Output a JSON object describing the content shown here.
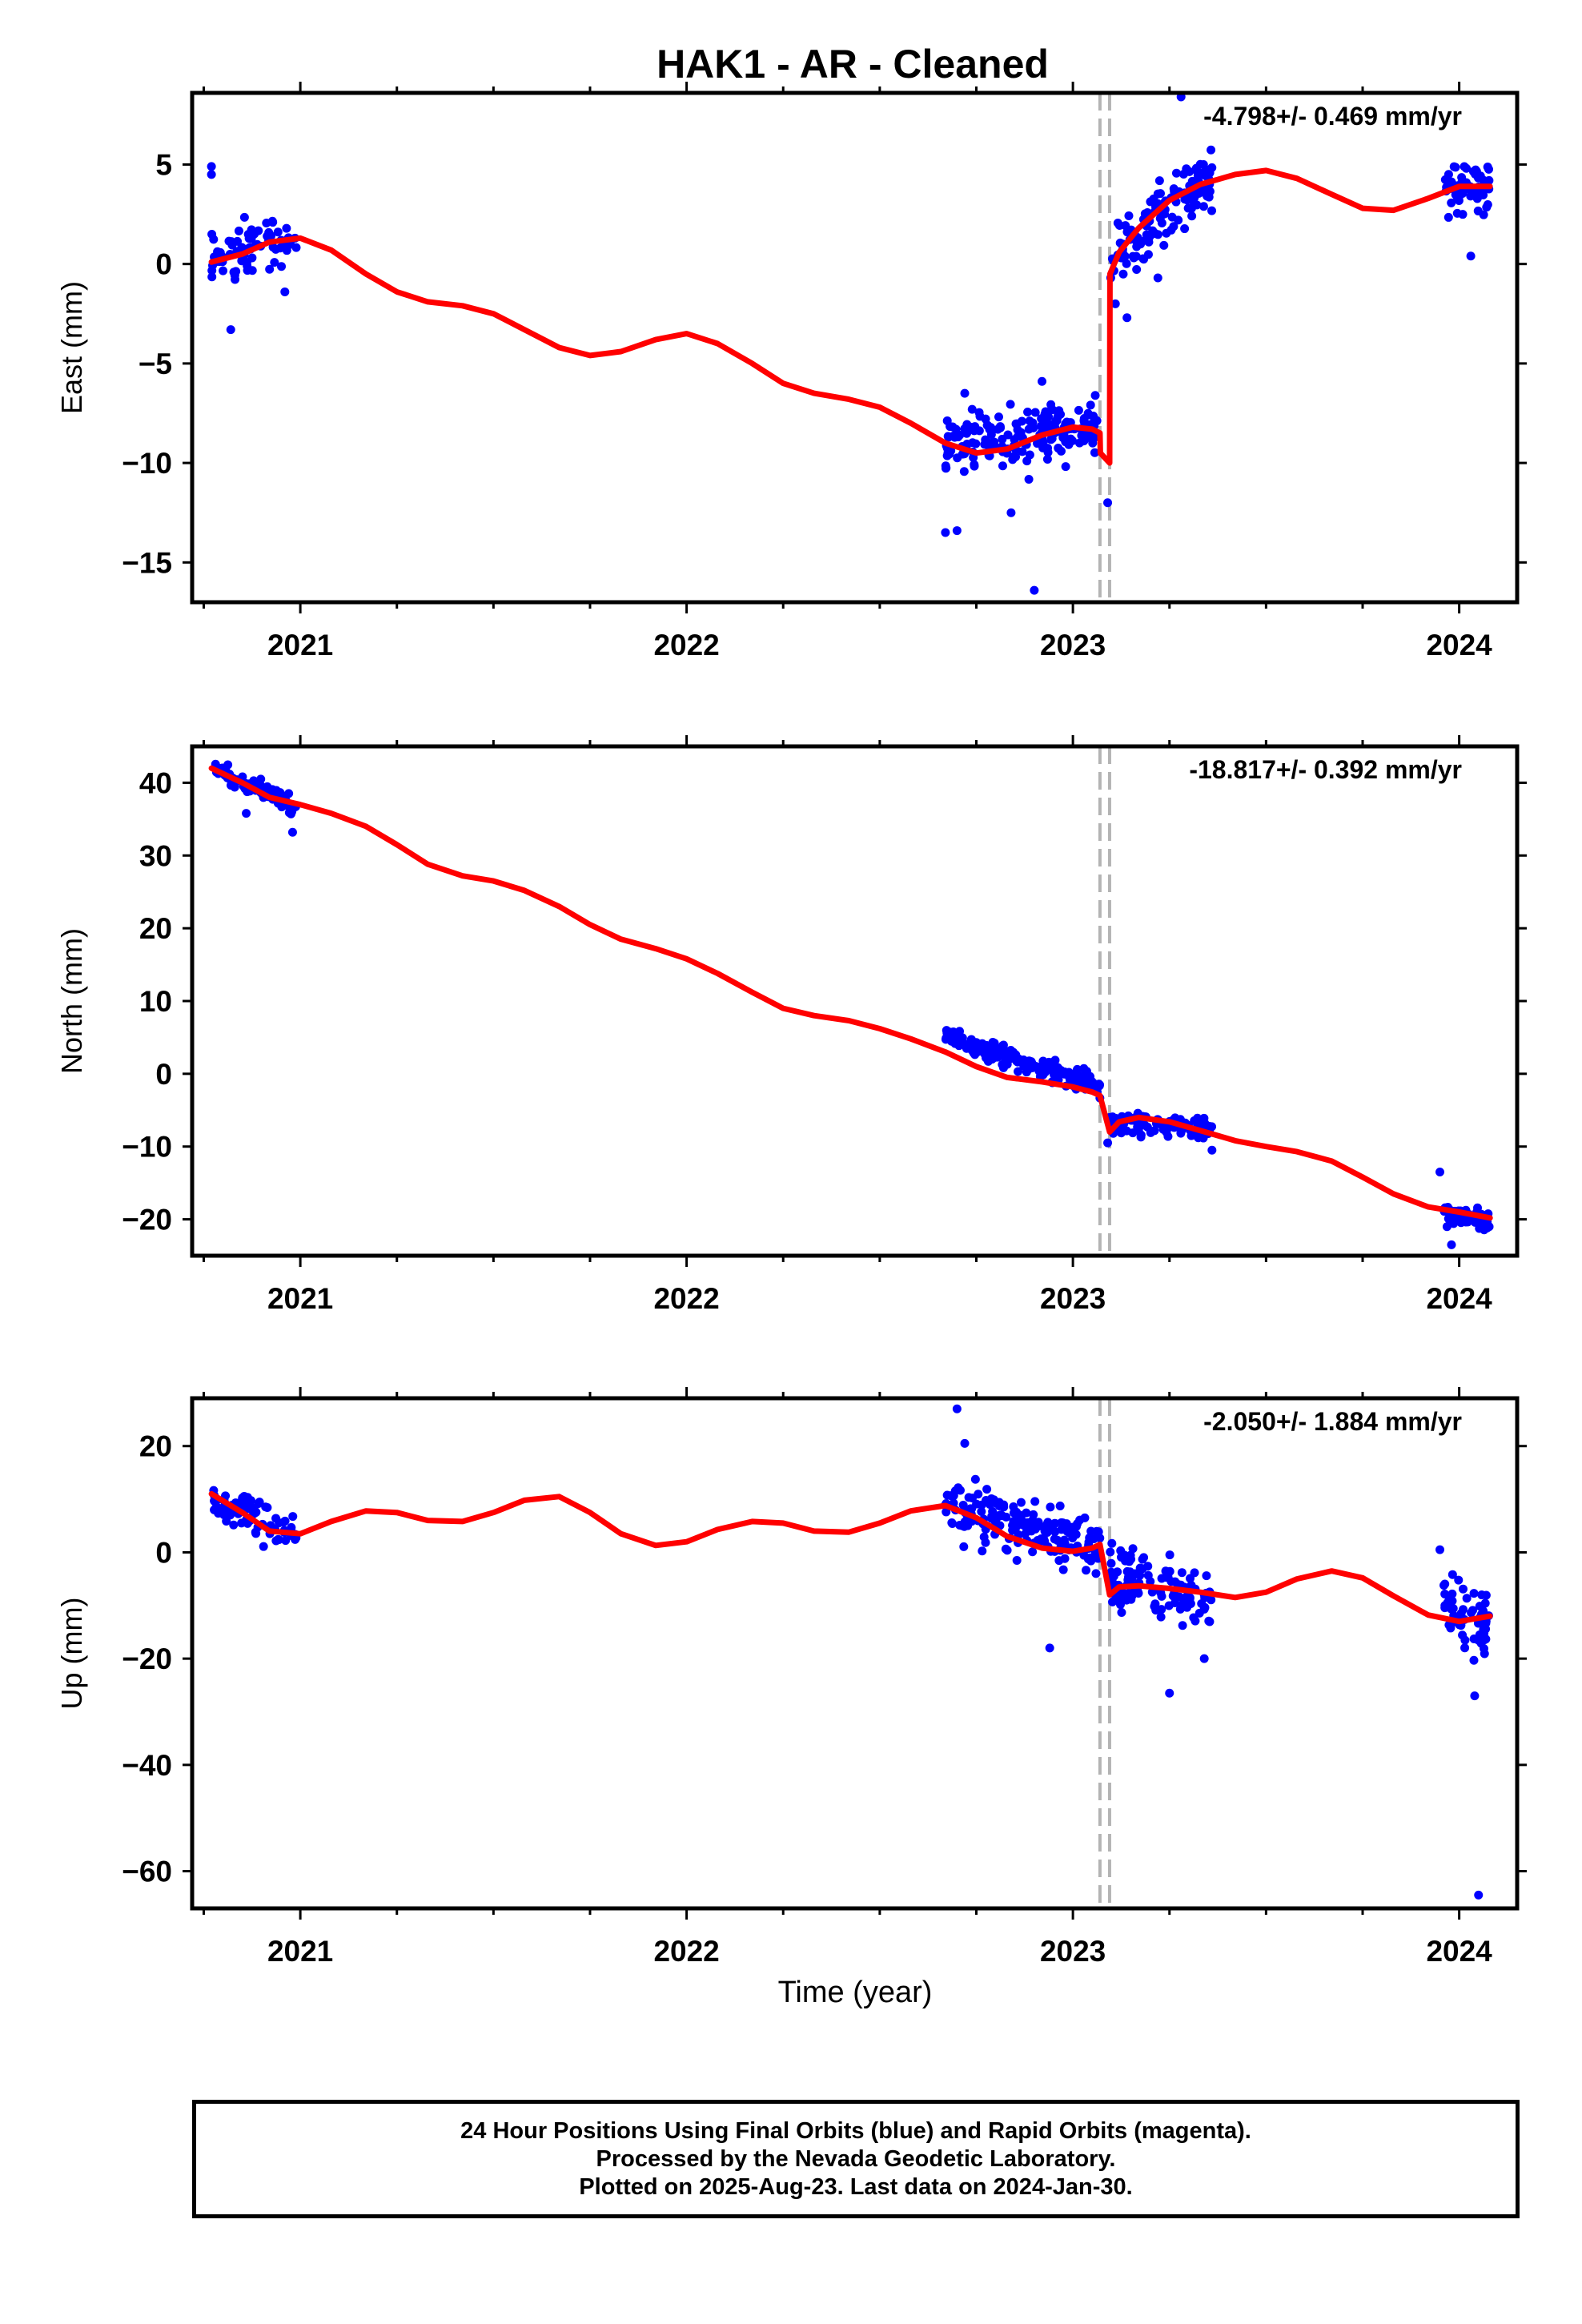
{
  "title": "HAK1  - AR - Cleaned",
  "xlabel": "Time (year)",
  "footer": {
    "line1": "24 Hour Positions Using Final Orbits (blue) and Rapid Orbits (magenta).",
    "line2": "Processed by the Nevada Geodetic Laboratory.",
    "line3": "Plotted on 2025-Aug-23. Last data on 2024-Jan-30."
  },
  "colors": {
    "points": "#0000ff",
    "model": "#ff0000",
    "steps": "#b4b4b4",
    "axes": "#000000"
  },
  "chart_data": [
    {
      "type": "scatter",
      "ylabel": "East (mm)",
      "rate_label": "-4.798+/- 0.469 mm/yr",
      "xlim": [
        2020.72,
        2024.15
      ],
      "ylim": [
        -17,
        8.6
      ],
      "x_ticks": [
        2021,
        2022,
        2023,
        2024
      ],
      "x_tick_labels": [
        "2021",
        "2022",
        "2023",
        "2024"
      ],
      "y_ticks": [
        -15,
        -10,
        -5,
        0,
        5
      ],
      "y_tick_labels": [
        "−15",
        "−10",
        "−5",
        "0",
        "5"
      ],
      "steps": [
        2023.07,
        2023.095
      ],
      "model": [
        [
          2020.77,
          0.1
        ],
        [
          2020.85,
          0.5
        ],
        [
          2020.92,
          1.1
        ],
        [
          2021.0,
          1.3
        ],
        [
          2021.08,
          0.7
        ],
        [
          2021.17,
          -0.5
        ],
        [
          2021.25,
          -1.4
        ],
        [
          2021.33,
          -1.9
        ],
        [
          2021.42,
          -2.1
        ],
        [
          2021.5,
          -2.5
        ],
        [
          2021.58,
          -3.3
        ],
        [
          2021.67,
          -4.2
        ],
        [
          2021.75,
          -4.6
        ],
        [
          2021.83,
          -4.4
        ],
        [
          2021.92,
          -3.8
        ],
        [
          2022.0,
          -3.5
        ],
        [
          2022.08,
          -4.0
        ],
        [
          2022.17,
          -5.0
        ],
        [
          2022.25,
          -6.0
        ],
        [
          2022.33,
          -6.5
        ],
        [
          2022.42,
          -6.8
        ],
        [
          2022.5,
          -7.2
        ],
        [
          2022.58,
          -8.0
        ],
        [
          2022.67,
          -9.0
        ],
        [
          2022.75,
          -9.5
        ],
        [
          2022.83,
          -9.3
        ],
        [
          2022.92,
          -8.6
        ],
        [
          2023.0,
          -8.2
        ],
        [
          2023.05,
          -8.3
        ],
        [
          2023.07,
          -8.5
        ],
        [
          2023.071,
          -9.5
        ],
        [
          2023.095,
          -10.0
        ],
        [
          2023.096,
          -0.5
        ],
        [
          2023.12,
          0.6
        ],
        [
          2023.17,
          1.8
        ],
        [
          2023.25,
          3.2
        ],
        [
          2023.33,
          4.0
        ],
        [
          2023.42,
          4.5
        ],
        [
          2023.5,
          4.7
        ],
        [
          2023.58,
          4.3
        ],
        [
          2023.67,
          3.5
        ],
        [
          2023.75,
          2.8
        ],
        [
          2023.83,
          2.7
        ],
        [
          2023.92,
          3.3
        ],
        [
          2024.0,
          3.9
        ],
        [
          2024.08,
          3.9
        ]
      ],
      "clusters": [
        {
          "x": [
            2020.77,
            2020.99
          ],
          "mean": [
            0.2,
            1.3
          ],
          "spread": 1.3,
          "n": 75
        },
        {
          "x": [
            2022.67,
            2023.07
          ],
          "mean": [
            -9.0,
            -8.2
          ],
          "spread": 1.3,
          "n": 190
        },
        {
          "x": [
            2023.095,
            2023.36
          ],
          "mean": [
            0.3,
            4.2
          ],
          "spread": 1.5,
          "n": 130
        },
        {
          "x": [
            2023.96,
            2024.08
          ],
          "mean": [
            3.8,
            4.0
          ],
          "spread": 1.2,
          "n": 60
        }
      ],
      "outliers": [
        [
          2020.77,
          4.9
        ],
        [
          2020.77,
          4.5
        ],
        [
          2020.82,
          -3.3
        ],
        [
          2020.96,
          -1.4
        ],
        [
          2022.67,
          -13.5
        ],
        [
          2022.7,
          -13.4
        ],
        [
          2022.72,
          -6.5
        ],
        [
          2022.84,
          -12.5
        ],
        [
          2022.9,
          -16.4
        ],
        [
          2022.92,
          -5.9
        ],
        [
          2023.09,
          -12.0
        ],
        [
          2023.11,
          -2.0
        ],
        [
          2023.14,
          -2.7
        ],
        [
          2023.28,
          8.4
        ],
        [
          2023.22,
          -0.7
        ],
        [
          2024.03,
          0.4
        ]
      ]
    },
    {
      "type": "scatter",
      "ylabel": "North (mm)",
      "rate_label": "-18.817+/- 0.392 mm/yr",
      "xlim": [
        2020.72,
        2024.15
      ],
      "ylim": [
        -25,
        45
      ],
      "x_ticks": [
        2021,
        2022,
        2023,
        2024
      ],
      "x_tick_labels": [
        "2021",
        "2022",
        "2023",
        "2024"
      ],
      "y_ticks": [
        -20,
        -10,
        0,
        10,
        20,
        30,
        40
      ],
      "y_tick_labels": [
        "−20",
        "−10",
        "0",
        "10",
        "20",
        "30",
        "40"
      ],
      "steps": [
        2023.07,
        2023.095
      ],
      "model": [
        [
          2020.77,
          42.0
        ],
        [
          2020.85,
          40.0
        ],
        [
          2020.92,
          38.0
        ],
        [
          2021.0,
          37.0
        ],
        [
          2021.08,
          35.8
        ],
        [
          2021.17,
          34.0
        ],
        [
          2021.25,
          31.5
        ],
        [
          2021.33,
          28.8
        ],
        [
          2021.42,
          27.2
        ],
        [
          2021.5,
          26.5
        ],
        [
          2021.58,
          25.2
        ],
        [
          2021.67,
          23.0
        ],
        [
          2021.75,
          20.5
        ],
        [
          2021.83,
          18.5
        ],
        [
          2021.92,
          17.2
        ],
        [
          2022.0,
          15.8
        ],
        [
          2022.08,
          13.8
        ],
        [
          2022.17,
          11.2
        ],
        [
          2022.25,
          9.0
        ],
        [
          2022.33,
          8.0
        ],
        [
          2022.42,
          7.3
        ],
        [
          2022.5,
          6.2
        ],
        [
          2022.58,
          4.8
        ],
        [
          2022.67,
          3.0
        ],
        [
          2022.75,
          1.0
        ],
        [
          2022.83,
          -0.5
        ],
        [
          2022.92,
          -1.1
        ],
        [
          2023.0,
          -1.8
        ],
        [
          2023.05,
          -2.5
        ],
        [
          2023.07,
          -3.0
        ],
        [
          2023.095,
          -8.0
        ],
        [
          2023.12,
          -6.6
        ],
        [
          2023.17,
          -6.0
        ],
        [
          2023.25,
          -6.6
        ],
        [
          2023.33,
          -7.8
        ],
        [
          2023.42,
          -9.2
        ],
        [
          2023.5,
          -10.0
        ],
        [
          2023.58,
          -10.7
        ],
        [
          2023.67,
          -12.0
        ],
        [
          2023.75,
          -14.2
        ],
        [
          2023.83,
          -16.5
        ],
        [
          2023.92,
          -18.3
        ],
        [
          2024.0,
          -19.0
        ],
        [
          2024.08,
          -19.8
        ]
      ],
      "clusters": [
        {
          "x": [
            2020.77,
            2020.99
          ],
          "mean": [
            42.3,
            36.5
          ],
          "spread": 1.2,
          "n": 85
        },
        {
          "x": [
            2022.67,
            2023.07
          ],
          "mean": [
            5.2,
            -1.8
          ],
          "spread": 1.2,
          "n": 200
        },
        {
          "x": [
            2023.095,
            2023.36
          ],
          "mean": [
            -6.5,
            -7.5
          ],
          "spread": 1.3,
          "n": 120
        },
        {
          "x": [
            2023.96,
            2024.08
          ],
          "mean": [
            -19.0,
            -20.5
          ],
          "spread": 1.3,
          "n": 60
        }
      ],
      "outliers": [
        [
          2020.86,
          35.8
        ],
        [
          2020.98,
          33.2
        ],
        [
          2023.09,
          -9.5
        ],
        [
          2023.36,
          -10.5
        ],
        [
          2023.95,
          -13.5
        ],
        [
          2023.98,
          -23.5
        ]
      ]
    },
    {
      "type": "scatter",
      "ylabel": "Up (mm)",
      "rate_label": "-2.050+/- 1.884 mm/yr",
      "xlim": [
        2020.72,
        2024.15
      ],
      "ylim": [
        -67,
        29
      ],
      "x_ticks": [
        2021,
        2022,
        2023,
        2024
      ],
      "x_tick_labels": [
        "2021",
        "2022",
        "2023",
        "2024"
      ],
      "y_ticks": [
        -60,
        -40,
        -20,
        0,
        20
      ],
      "y_tick_labels": [
        "−60",
        "−40",
        "−20",
        "0",
        "20"
      ],
      "steps": [
        2023.07,
        2023.095
      ],
      "model": [
        [
          2020.77,
          11.0
        ],
        [
          2020.85,
          7.5
        ],
        [
          2020.92,
          4.0
        ],
        [
          2021.0,
          3.5
        ],
        [
          2021.08,
          5.8
        ],
        [
          2021.17,
          7.8
        ],
        [
          2021.25,
          7.5
        ],
        [
          2021.33,
          6.0
        ],
        [
          2021.42,
          5.8
        ],
        [
          2021.5,
          7.5
        ],
        [
          2021.58,
          9.8
        ],
        [
          2021.67,
          10.5
        ],
        [
          2021.75,
          7.5
        ],
        [
          2021.83,
          3.5
        ],
        [
          2021.92,
          1.3
        ],
        [
          2022.0,
          2.0
        ],
        [
          2022.08,
          4.3
        ],
        [
          2022.17,
          5.8
        ],
        [
          2022.25,
          5.5
        ],
        [
          2022.33,
          4.0
        ],
        [
          2022.42,
          3.8
        ],
        [
          2022.5,
          5.5
        ],
        [
          2022.58,
          7.8
        ],
        [
          2022.67,
          8.8
        ],
        [
          2022.75,
          6.5
        ],
        [
          2022.83,
          3.0
        ],
        [
          2022.92,
          0.8
        ],
        [
          2023.0,
          0.2
        ],
        [
          2023.05,
          0.8
        ],
        [
          2023.07,
          1.5
        ],
        [
          2023.095,
          -8.0
        ],
        [
          2023.12,
          -6.5
        ],
        [
          2023.17,
          -6.3
        ],
        [
          2023.25,
          -6.8
        ],
        [
          2023.33,
          -7.5
        ],
        [
          2023.42,
          -8.5
        ],
        [
          2023.5,
          -7.5
        ],
        [
          2023.58,
          -5.0
        ],
        [
          2023.67,
          -3.5
        ],
        [
          2023.75,
          -4.8
        ],
        [
          2023.83,
          -8.2
        ],
        [
          2023.92,
          -11.8
        ],
        [
          2024.0,
          -13.0
        ],
        [
          2024.08,
          -12.0
        ]
      ],
      "clusters": [
        {
          "x": [
            2020.77,
            2020.99
          ],
          "mean": [
            10.5,
            4.0
          ],
          "spread": 3.0,
          "n": 85
        },
        {
          "x": [
            2022.67,
            2023.07
          ],
          "mean": [
            9.0,
            0.5
          ],
          "spread": 4.5,
          "n": 190
        },
        {
          "x": [
            2023.095,
            2023.36
          ],
          "mean": [
            -4.5,
            -9.0
          ],
          "spread": 5.0,
          "n": 120
        },
        {
          "x": [
            2023.96,
            2024.08
          ],
          "mean": [
            -10.0,
            -14.0
          ],
          "spread": 6.0,
          "n": 60
        }
      ],
      "outliers": [
        [
          2022.7,
          27.0
        ],
        [
          2022.72,
          20.5
        ],
        [
          2022.94,
          -18.0
        ],
        [
          2023.25,
          -26.5
        ],
        [
          2023.34,
          -20.0
        ],
        [
          2024.04,
          -27.0
        ],
        [
          2024.05,
          -64.5
        ],
        [
          2023.95,
          0.5
        ]
      ]
    }
  ]
}
